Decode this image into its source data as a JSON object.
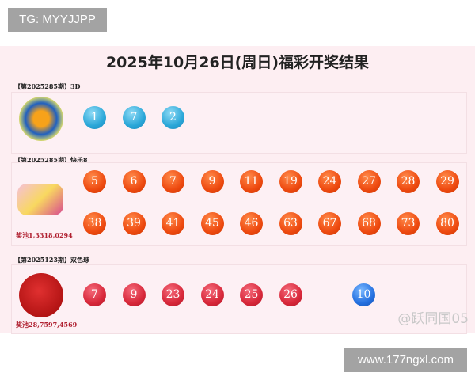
{
  "badge": "TG: MYYJJPP",
  "title": "2025年10月26日(周日)福彩开奖结果",
  "sections": [
    {
      "label": "【第2025285期】3D",
      "logo": "3D",
      "balls": [
        "1",
        "7",
        "2"
      ]
    },
    {
      "label": "【第2025285期】快乐8",
      "logo": "快乐8",
      "row1": [
        "5",
        "6",
        "7",
        "9",
        "11",
        "19",
        "24",
        "27",
        "28",
        "29"
      ],
      "row2": [
        "38",
        "39",
        "41",
        "45",
        "46",
        "63",
        "67",
        "68",
        "73",
        "80"
      ],
      "pool": "奖池1,3318,0294"
    },
    {
      "label": "【第2025123期】双色球",
      "logo": "双色球",
      "red": [
        "7",
        "9",
        "23",
        "24",
        "25",
        "26"
      ],
      "blue": [
        "10"
      ],
      "pool": "奖池28,7597,4569"
    }
  ],
  "watermark": "@跃同国05",
  "url": "www.177ngxl.com",
  "colors": {
    "ball_3d": "#2aa7d8",
    "ball_kl8": "#ee4a10",
    "ball_red": "#d8283a",
    "ball_blue": "#2470e0",
    "band": "#fdeef2"
  }
}
